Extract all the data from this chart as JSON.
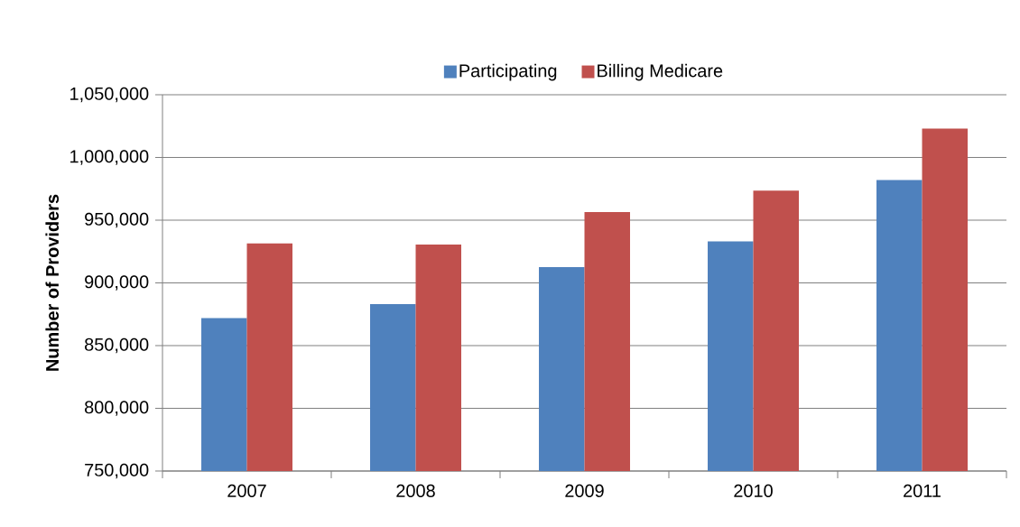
{
  "chart_data": {
    "type": "bar",
    "ylabel": "Number of Providers",
    "categories": [
      "2007",
      "2008",
      "2009",
      "2010",
      "2011"
    ],
    "series": [
      {
        "name": "Participating",
        "color": "#4f81bd",
        "values": [
          872000,
          883000,
          912500,
          933000,
          982000
        ]
      },
      {
        "name": "Billing Medicare",
        "color": "#c0504d",
        "values": [
          931500,
          930500,
          956500,
          973500,
          1023000
        ]
      }
    ],
    "ylim": [
      750000,
      1050000
    ],
    "yticks": [
      {
        "value": 750000,
        "label": "750,000"
      },
      {
        "value": 800000,
        "label": "800,000"
      },
      {
        "value": 850000,
        "label": "850,000"
      },
      {
        "value": 900000,
        "label": "900,000"
      },
      {
        "value": 950000,
        "label": "950,000"
      },
      {
        "value": 1000000,
        "label": "1,000,000"
      },
      {
        "value": 1050000,
        "label": "1,050,000"
      }
    ],
    "grid": "y",
    "legend": "top"
  }
}
